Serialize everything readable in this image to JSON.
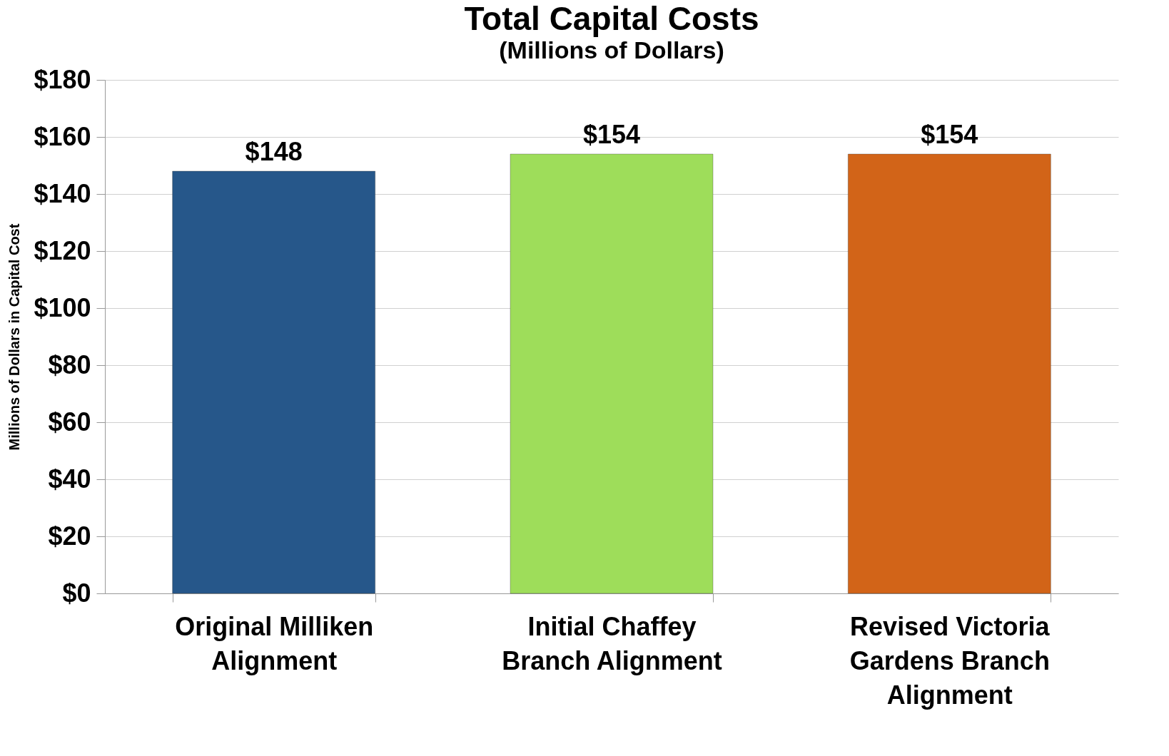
{
  "chart_data": {
    "type": "bar",
    "title": "Total Capital Costs",
    "subtitle": "(Millions of Dollars)",
    "ylabel": "Millions of Dollars in Capital Cost",
    "categories": [
      "Original Milliken Alignment",
      "Initial Chaffey Branch Alignment",
      "Revised Victoria Gardens Branch Alignment"
    ],
    "values": [
      148,
      154,
      154
    ],
    "colors": [
      "#26578a",
      "#9edd5a",
      "#d26418"
    ],
    "value_labels": [
      "$148",
      "$154",
      "$154"
    ],
    "ylim": [
      0,
      180
    ],
    "yticks": [
      {
        "value": 0,
        "label": "$0"
      },
      {
        "value": 20,
        "label": "$20"
      },
      {
        "value": 40,
        "label": "$40"
      },
      {
        "value": 60,
        "label": "$60"
      },
      {
        "value": 80,
        "label": "$80"
      },
      {
        "value": 100,
        "label": "$100"
      },
      {
        "value": 120,
        "label": "$120"
      },
      {
        "value": 140,
        "label": "$140"
      },
      {
        "value": 160,
        "label": "$160"
      },
      {
        "value": 180,
        "label": "$180"
      }
    ],
    "grid": "y"
  }
}
